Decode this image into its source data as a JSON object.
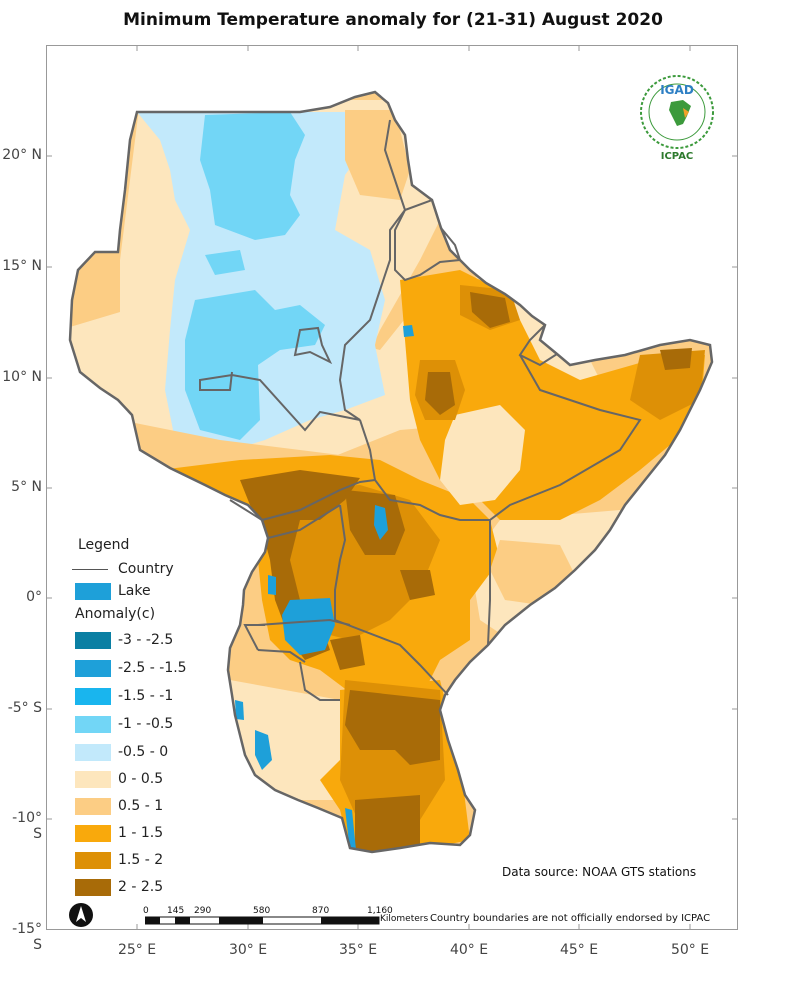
{
  "title": "Minimum Temperature  anomaly for (21-31)  August 2020",
  "axes": {
    "lat_labels": [
      "20° N",
      "15° N",
      "10° N",
      "5° N",
      "0°",
      "-5° S",
      "-10° S",
      "-15° S"
    ],
    "lon_labels": [
      "25° E",
      "30° E",
      "35° E",
      "40° E",
      "45° E",
      "50° E"
    ]
  },
  "logo": {
    "name": "IGAD",
    "org": "ICPAC"
  },
  "legend": {
    "title": "Legend",
    "country_label": "Country",
    "lake_label": "Lake",
    "anomaly_title": "Anomaly(c)",
    "classes": [
      {
        "label": "-3 - -2.5",
        "color": "#0a7fa3"
      },
      {
        "label": "-2.5 - -1.5",
        "color": "#1ea0d9"
      },
      {
        "label": "-1.5 - -1",
        "color": "#19b5ee"
      },
      {
        "label": "-1 - -0.5",
        "color": "#72d6f6"
      },
      {
        "label": "-0.5 - 0",
        "color": "#c2e9fb"
      },
      {
        "label": "0 - 0.5",
        "color": "#fde6bd"
      },
      {
        "label": "0.5 - 1",
        "color": "#fccd84"
      },
      {
        "label": "1 - 1.5",
        "color": "#f9a90c"
      },
      {
        "label": "1.5 - 2",
        "color": "#dd9006"
      },
      {
        "label": "2 - 2.5",
        "color": "#a86b08"
      }
    ]
  },
  "colors": {
    "country_border": "#666666",
    "lake": "#1ea0d9"
  },
  "data_source": "Data source: NOAA   GTS stations",
  "disclaimer": "Country boundaries are not officially endorsed by ICPAC",
  "scale_bar": {
    "ticks": [
      "0",
      "145",
      "290",
      "580",
      "870",
      "1,160"
    ],
    "unit": "Kilometers"
  },
  "north_arrow": "N"
}
